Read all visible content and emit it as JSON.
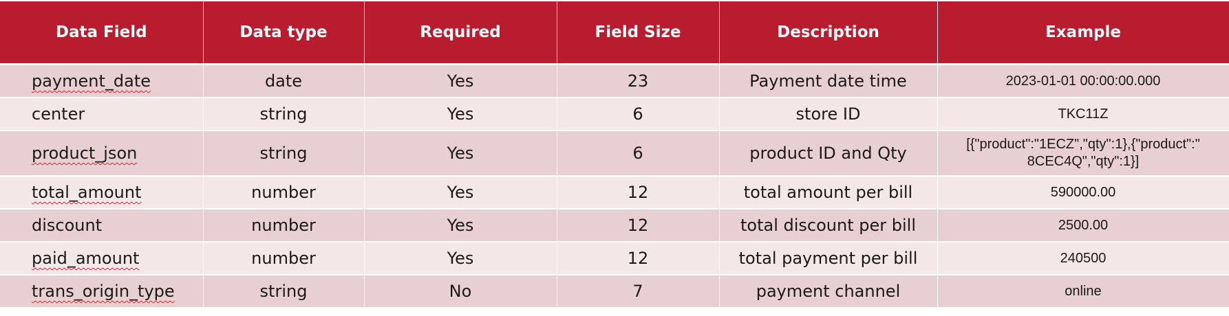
{
  "table": {
    "headers": {
      "data_field": "Data Field",
      "data_type": "Data type",
      "required": "Required",
      "field_size": "Field Size",
      "description": "Description",
      "example": "Example"
    },
    "rows": [
      {
        "field": "payment_date",
        "type": "date",
        "required": "Yes",
        "size": "23",
        "description": "Payment date time",
        "example": "2023-01-01 00:00:00.000"
      },
      {
        "field": "center",
        "type": "string",
        "required": "Yes",
        "size": "6",
        "description": "store ID",
        "example": "TKC11Z"
      },
      {
        "field": "product_json",
        "type": "string",
        "required": "Yes",
        "size": "6",
        "description": "product ID and Qty",
        "example_line1": "[{\"product\":\"1ECZ\",\"qty\":1},{\"product\":\"",
        "example_line2": "8CEC4Q\",\"qty\":1}]"
      },
      {
        "field": "total_amount",
        "type": "number",
        "required": "Yes",
        "size": "12",
        "description": "total amount per bill",
        "example": "590000.00"
      },
      {
        "field": "discount",
        "type": "number",
        "required": "Yes",
        "size": "12",
        "description": "total discount per bill",
        "example": "2500.00"
      },
      {
        "field": "paid_amount",
        "type": "number",
        "required": "Yes",
        "size": "12",
        "description": "total payment per bill",
        "example": "240500"
      },
      {
        "field": "trans_origin_type",
        "type": "string",
        "required": "No",
        "size": "7",
        "description": "payment channel",
        "example": "online"
      }
    ]
  },
  "colors": {
    "header_bg": "#b81c2e",
    "row_odd_bg": "#e8cfd2",
    "row_even_bg": "#f3e7e8",
    "spellcheck_underline": "#d22b2b"
  }
}
